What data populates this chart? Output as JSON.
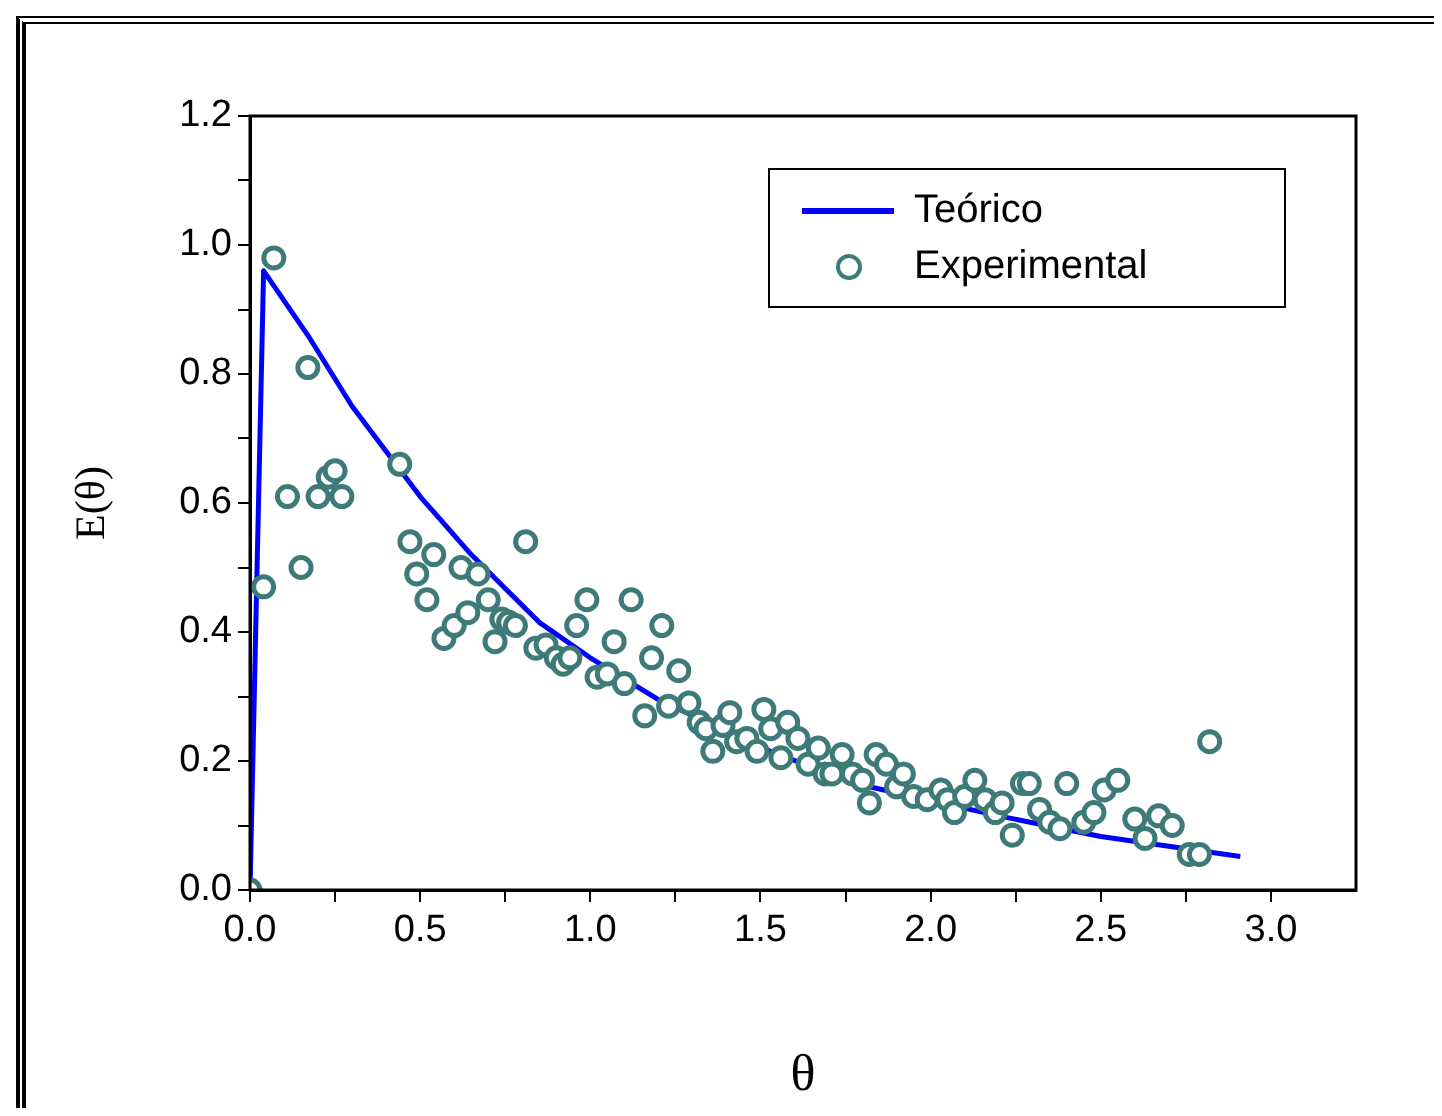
{
  "chart_data": {
    "type": "scatter",
    "xlabel": "θ",
    "ylabel": "E(θ)",
    "xlim": [
      0,
      3.25
    ],
    "ylim": [
      0,
      1.2
    ],
    "xticks": [
      {
        "value": 0,
        "label": "0.0"
      },
      {
        "value": 0.25,
        "label": null
      },
      {
        "value": 0.5,
        "label": "0.5"
      },
      {
        "value": 0.75,
        "label": null
      },
      {
        "value": 1,
        "label": "1.0"
      },
      {
        "value": 1.25,
        "label": null
      },
      {
        "value": 1.5,
        "label": "1.5"
      },
      {
        "value": 1.75,
        "label": null
      },
      {
        "value": 2,
        "label": "2.0"
      },
      {
        "value": 2.25,
        "label": null
      },
      {
        "value": 2.5,
        "label": "2.5"
      },
      {
        "value": 2.75,
        "label": null
      },
      {
        "value": 3,
        "label": "3.0"
      }
    ],
    "yticks": [
      {
        "value": 0,
        "label": "0.0"
      },
      {
        "value": 0.1,
        "label": null
      },
      {
        "value": 0.2,
        "label": "0.2"
      },
      {
        "value": 0.3,
        "label": null
      },
      {
        "value": 0.4,
        "label": "0.4"
      },
      {
        "value": 0.5,
        "label": null
      },
      {
        "value": 0.6,
        "label": "0.6"
      },
      {
        "value": 0.7,
        "label": null
      },
      {
        "value": 0.8,
        "label": "0.8"
      },
      {
        "value": 0.9,
        "label": null
      },
      {
        "value": 1.0,
        "label": "1.0"
      },
      {
        "value": 1.1,
        "label": null
      },
      {
        "value": 1.2,
        "label": "1.2"
      }
    ],
    "grid": false,
    "legend": "top right",
    "series": [
      {
        "name": "Teórico",
        "type": "line",
        "color": "#0000ff",
        "marker": "none",
        "line_style": "solid",
        "x": [
          0,
          0.04,
          0.17,
          0.3,
          0.5,
          0.65,
          0.85,
          1.0,
          1.2,
          1.55,
          1.82,
          2.2,
          2.5,
          2.91
        ],
        "values": [
          0,
          0.96,
          0.86,
          0.75,
          0.61,
          0.52,
          0.415,
          0.36,
          0.295,
          0.21,
          0.16,
          0.115,
          0.083,
          0.052
        ]
      },
      {
        "name": "Experimental",
        "type": "scatter",
        "color": "#3d7a78",
        "marker": "circle",
        "x": [
          0,
          0.04,
          0.07,
          0.11,
          0.15,
          0.17,
          0.2,
          0.23,
          0.25,
          0.27,
          0.44,
          0.47,
          0.49,
          0.52,
          0.54,
          0.57,
          0.6,
          0.62,
          0.64,
          0.67,
          0.7,
          0.72,
          0.74,
          0.76,
          0.78,
          0.81,
          0.84,
          0.87,
          0.9,
          0.92,
          0.94,
          0.96,
          0.99,
          1.02,
          1.05,
          1.07,
          1.1,
          1.12,
          1.16,
          1.18,
          1.21,
          1.23,
          1.26,
          1.29,
          1.32,
          1.34,
          1.36,
          1.39,
          1.41,
          1.43,
          1.46,
          1.49,
          1.51,
          1.53,
          1.56,
          1.58,
          1.61,
          1.64,
          1.67,
          1.69,
          1.71,
          1.74,
          1.77,
          1.8,
          1.82,
          1.84,
          1.87,
          1.9,
          1.92,
          1.95,
          1.99,
          2.03,
          2.05,
          2.07,
          2.1,
          2.13,
          2.16,
          2.19,
          2.21,
          2.24,
          2.27,
          2.29,
          2.32,
          2.35,
          2.38,
          2.4,
          2.45,
          2.48,
          2.51,
          2.55,
          2.6,
          2.63,
          2.67,
          2.71,
          2.76,
          2.79,
          2.82
        ],
        "values": [
          0,
          0.47,
          0.98,
          0.61,
          0.5,
          0.81,
          0.61,
          0.64,
          0.65,
          0.61,
          0.66,
          0.54,
          0.49,
          0.45,
          0.52,
          0.39,
          0.41,
          0.5,
          0.43,
          0.49,
          0.45,
          0.385,
          0.42,
          0.415,
          0.41,
          0.54,
          0.375,
          0.38,
          0.36,
          0.35,
          0.36,
          0.41,
          0.45,
          0.33,
          0.335,
          0.385,
          0.32,
          0.45,
          0.27,
          0.36,
          0.41,
          0.285,
          0.34,
          0.29,
          0.26,
          0.25,
          0.215,
          0.255,
          0.275,
          0.23,
          0.235,
          0.215,
          0.28,
          0.25,
          0.205,
          0.26,
          0.235,
          0.195,
          0.22,
          0.18,
          0.18,
          0.21,
          0.18,
          0.17,
          0.135,
          0.21,
          0.195,
          0.16,
          0.18,
          0.145,
          0.14,
          0.155,
          0.14,
          0.12,
          0.145,
          0.17,
          0.14,
          0.12,
          0.135,
          0.085,
          0.165,
          0.165,
          0.125,
          0.105,
          0.095,
          0.165,
          0.105,
          0.12,
          0.155,
          0.17,
          0.11,
          0.08,
          0.115,
          0.1,
          0.055,
          0.055,
          0.23
        ]
      }
    ]
  }
}
